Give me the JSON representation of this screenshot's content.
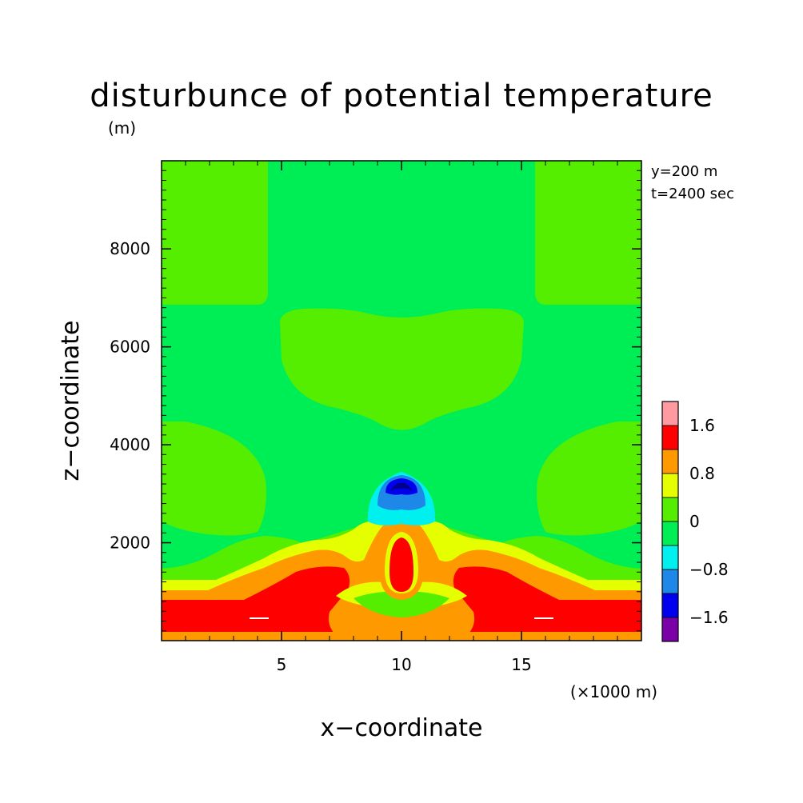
{
  "chart_data": {
    "type": "heatmap",
    "title": "disturbunce of potential temperature",
    "ylabel": "z−coordinate",
    "yunit": "(m)",
    "xlabel": "x−coordinate",
    "xunit": "(×1000 m)",
    "annotations": [
      "y=200 m",
      "t=2400 sec"
    ],
    "xlim": [
      0,
      20
    ],
    "ylim": [
      0,
      9800
    ],
    "x_ticks": [
      5,
      10,
      15
    ],
    "x_tick_labels": [
      "5",
      "10",
      "15"
    ],
    "y_ticks": [
      2000,
      4000,
      6000,
      8000
    ],
    "y_tick_labels": [
      "2000",
      "4000",
      "6000",
      "8000"
    ],
    "colorbar": {
      "levels": [
        -2.0,
        -1.6,
        -1.2,
        -0.8,
        -0.4,
        0,
        0.4,
        0.8,
        1.2,
        1.6,
        2.0
      ],
      "colors": [
        "#7a00a8",
        "#0000ee",
        "#1e88e8",
        "#00f0f0",
        "#00ee55",
        "#55ee00",
        "#e6ff00",
        "#ff9900",
        "#ff0000",
        "#ff9aa0"
      ],
      "tick_labels": [
        "1.6",
        "0.8",
        "0",
        "−0.8",
        "−1.6"
      ],
      "tick_values": [
        1.6,
        0.8,
        0,
        -0.8,
        -1.6
      ]
    }
  }
}
